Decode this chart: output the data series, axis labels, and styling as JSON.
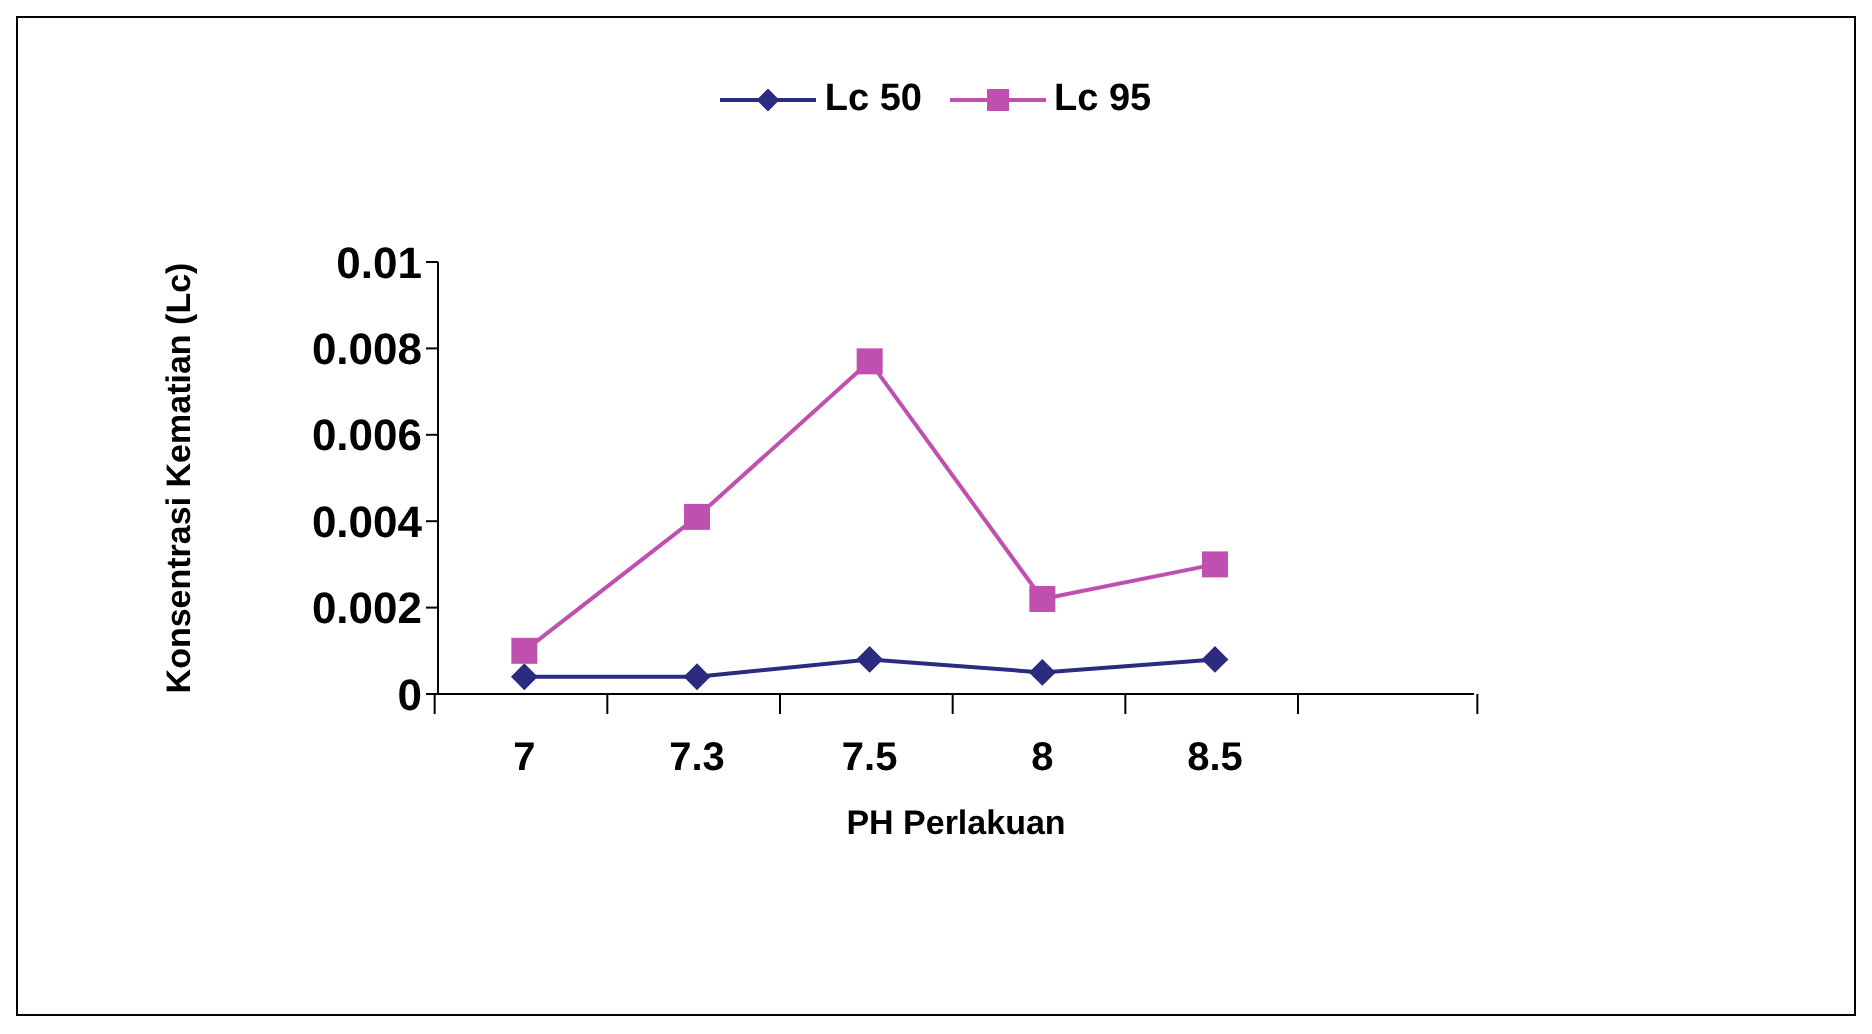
{
  "chart_data": {
    "type": "line",
    "xlabel": "PH Perlakuan",
    "ylabel": "Konsentrasi Kematian (Lc)",
    "categories": [
      "7",
      "7.3",
      "7.5",
      "8",
      "8.5",
      null
    ],
    "series": [
      {
        "name": "Lc 50",
        "color": "#2b2b80",
        "marker": "diamond",
        "values": [
          0.0004,
          0.0004,
          0.0008,
          0.0005,
          0.0008,
          null
        ]
      },
      {
        "name": "Lc 95",
        "color": "#c050b0",
        "marker": "square",
        "values": [
          0.001,
          0.0041,
          0.0077,
          0.0022,
          0.003,
          null
        ]
      }
    ],
    "ylim": [
      0,
      0.01
    ],
    "yticks": [
      0,
      0.002,
      0.004,
      0.006,
      0.008,
      0.01
    ],
    "grid": false,
    "legend": "top"
  }
}
